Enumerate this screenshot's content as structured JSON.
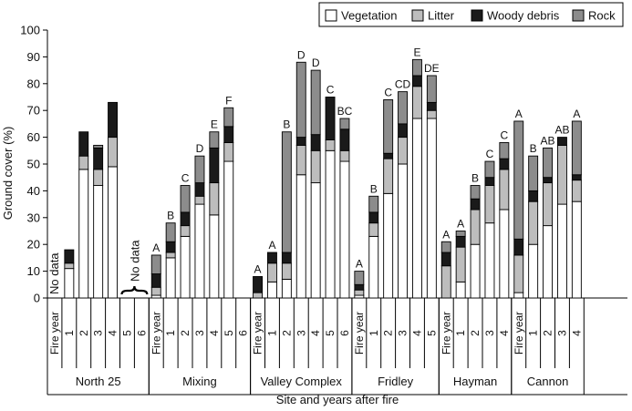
{
  "chart_data": {
    "type": "bar",
    "stacked": true,
    "xlabel": "Site and years after fire",
    "ylabel": "Ground cover (%)",
    "ylim": [
      0,
      100
    ],
    "yticks": [
      0,
      10,
      20,
      30,
      40,
      50,
      60,
      70,
      80,
      90,
      100
    ],
    "legend_position": "top-right",
    "series": [
      {
        "name": "Vegetation",
        "color": "#ffffff"
      },
      {
        "name": "Litter",
        "color": "#bdbdbd"
      },
      {
        "name": "Woody debris",
        "color": "#1a1a1a"
      },
      {
        "name": "Rock",
        "color": "#8c8c8c"
      }
    ],
    "no_data_label": "No data",
    "sites": [
      {
        "name": "North 25",
        "bars": [
          {
            "x": "Fire year",
            "nodata": true
          },
          {
            "x": "1",
            "values": [
              11,
              2,
              5,
              0
            ]
          },
          {
            "x": "2",
            "values": [
              48,
              5,
              9,
              0
            ]
          },
          {
            "x": "3",
            "values": [
              42,
              6,
              8,
              1
            ]
          },
          {
            "x": "4",
            "values": [
              49,
              11,
              13,
              0
            ]
          },
          {
            "x": "5",
            "nodata": true
          },
          {
            "x": "6",
            "nodata": true
          }
        ]
      },
      {
        "name": "Mixing",
        "bars": [
          {
            "x": "Fire year",
            "values": [
              1,
              3,
              5,
              7
            ],
            "letter": "A"
          },
          {
            "x": "1",
            "values": [
              15,
              2,
              4,
              7
            ],
            "letter": "B"
          },
          {
            "x": "2",
            "values": [
              23,
              4,
              5,
              10
            ],
            "letter": "C"
          },
          {
            "x": "3",
            "values": [
              35,
              3,
              5,
              10
            ],
            "letter": "D"
          },
          {
            "x": "4",
            "values": [
              31,
              12,
              13,
              6
            ],
            "letter": "E"
          },
          {
            "x": "5",
            "values": [
              51,
              7,
              6,
              7
            ],
            "letter": "F"
          },
          {
            "x": "6",
            "nodata": false,
            "values": null
          }
        ]
      },
      {
        "name": "Valley Complex",
        "bars": [
          {
            "x": "Fire year",
            "values": [
              0,
              2,
              6,
              0
            ],
            "letter": "A"
          },
          {
            "x": "1",
            "values": [
              6,
              7,
              4,
              0
            ],
            "letter": "A"
          },
          {
            "x": "2",
            "values": [
              7,
              6,
              4,
              45
            ],
            "letter": "B"
          },
          {
            "x": "3",
            "values": [
              46,
              11,
              3,
              28
            ],
            "letter": "D"
          },
          {
            "x": "4",
            "values": [
              43,
              12,
              6,
              24
            ],
            "letter": "D"
          },
          {
            "x": "5",
            "values": [
              55,
              4,
              16,
              0
            ],
            "letter": "C"
          },
          {
            "x": "6",
            "values": [
              51,
              4,
              8,
              4
            ],
            "letter": "BC"
          }
        ]
      },
      {
        "name": "Fridley",
        "bars": [
          {
            "x": "Fire year",
            "values": [
              1,
              2,
              2,
              5
            ],
            "letter": "A"
          },
          {
            "x": "1",
            "values": [
              23,
              5,
              4,
              6
            ],
            "letter": "B"
          },
          {
            "x": "2",
            "values": [
              39,
              13,
              2,
              20
            ],
            "letter": "C"
          },
          {
            "x": "3",
            "values": [
              50,
              10,
              5,
              12
            ],
            "letter": "CD"
          },
          {
            "x": "4",
            "values": [
              67,
              12,
              4,
              6
            ],
            "letter": "E"
          },
          {
            "x": "5",
            "values": [
              67,
              3,
              3,
              10
            ],
            "letter": "DE"
          }
        ]
      },
      {
        "name": "Hayman",
        "bars": [
          {
            "x": "Fire year",
            "values": [
              0,
              12,
              5,
              4
            ],
            "letter": "A"
          },
          {
            "x": "1",
            "values": [
              6,
              13,
              4,
              2
            ],
            "letter": "A"
          },
          {
            "x": "2",
            "values": [
              20,
              13,
              4,
              5
            ],
            "letter": "B"
          },
          {
            "x": "3",
            "values": [
              28,
              14,
              3,
              6
            ],
            "letter": "C"
          },
          {
            "x": "4",
            "values": [
              33,
              15,
              4,
              6
            ],
            "letter": "C"
          }
        ]
      },
      {
        "name": "Cannon",
        "bars": [
          {
            "x": "Fire year",
            "values": [
              2,
              14,
              6,
              44
            ],
            "letter": "A"
          },
          {
            "x": "1",
            "values": [
              20,
              16,
              4,
              13
            ],
            "letter": "B"
          },
          {
            "x": "2",
            "values": [
              27,
              16,
              2,
              11
            ],
            "letter": "AB"
          },
          {
            "x": "3",
            "values": [
              35,
              22,
              3,
              0
            ],
            "letter": "AB"
          },
          {
            "x": "4",
            "values": [
              36,
              8,
              2,
              20
            ],
            "letter": "A"
          }
        ]
      }
    ]
  }
}
